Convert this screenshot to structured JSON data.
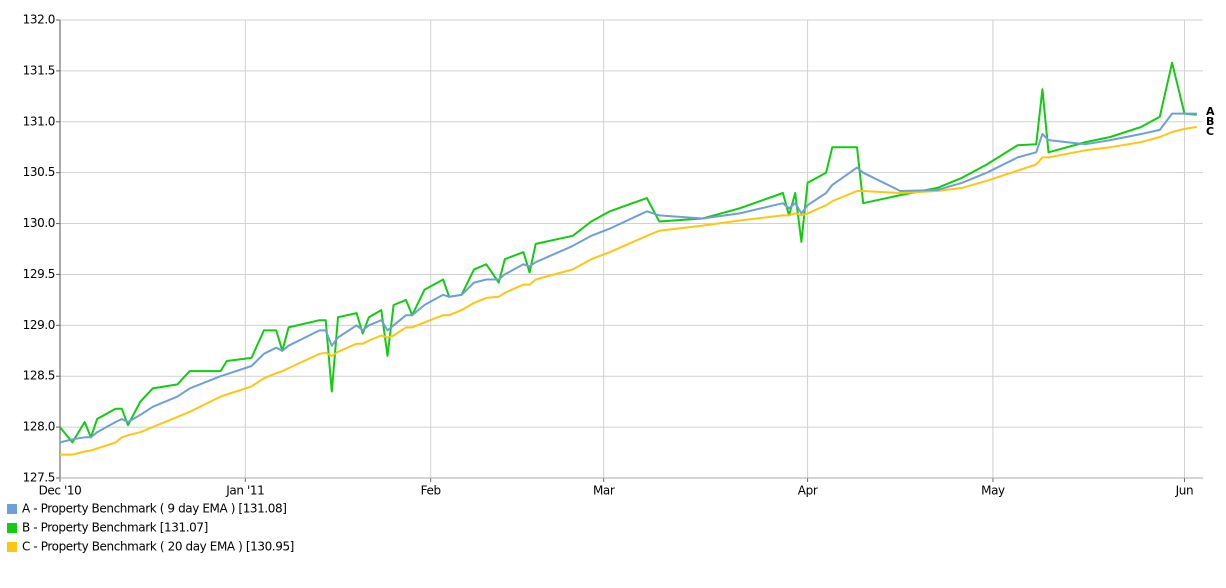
{
  "chart_data": {
    "type": "line",
    "x": [
      0,
      2,
      4,
      5,
      6,
      9,
      10,
      11,
      13,
      15,
      19,
      21,
      26,
      27,
      31,
      33,
      35,
      36,
      37,
      42,
      43,
      44,
      45,
      48,
      49,
      50,
      52,
      53,
      54,
      56,
      57,
      59,
      62,
      63,
      65,
      67,
      69,
      71,
      72,
      75,
      76,
      77,
      83,
      86,
      89,
      95,
      97,
      104,
      110,
      117,
      118,
      119,
      120,
      121,
      124,
      125,
      129,
      130,
      136,
      142,
      146,
      150,
      155,
      158,
      159,
      160,
      166,
      170,
      175,
      178,
      180,
      182,
      184
    ],
    "series": [
      {
        "name": "A - Property Benchmark ( 9 day EMA ) [131.08]",
        "tag": "A",
        "color": "#6f9fd8",
        "values": [
          127.85,
          127.88,
          127.9,
          127.9,
          127.95,
          128.05,
          128.08,
          128.05,
          128.12,
          128.2,
          128.3,
          128.38,
          128.5,
          128.52,
          128.6,
          128.72,
          128.78,
          128.75,
          128.8,
          128.95,
          128.95,
          128.8,
          128.88,
          129.0,
          128.95,
          129.0,
          129.05,
          128.95,
          129.0,
          129.1,
          129.1,
          129.2,
          129.3,
          129.28,
          129.3,
          129.42,
          129.45,
          129.45,
          129.5,
          129.6,
          129.58,
          129.62,
          129.78,
          129.88,
          129.95,
          130.12,
          130.08,
          130.05,
          130.1,
          130.2,
          130.15,
          130.2,
          130.1,
          130.18,
          130.3,
          130.38,
          130.55,
          130.5,
          130.32,
          130.33,
          130.4,
          130.5,
          130.65,
          130.7,
          130.88,
          130.82,
          130.78,
          130.82,
          130.88,
          130.92,
          131.08,
          131.08,
          131.08
        ]
      },
      {
        "name": "B - Property Benchmark [131.07]",
        "tag": "B",
        "color": "#11cc11",
        "values": [
          128.0,
          127.85,
          128.05,
          127.9,
          128.08,
          128.18,
          128.18,
          128.02,
          128.25,
          128.38,
          128.42,
          128.55,
          128.55,
          128.65,
          128.68,
          128.95,
          128.95,
          128.75,
          128.98,
          129.05,
          129.05,
          128.35,
          129.08,
          129.12,
          128.92,
          129.08,
          129.15,
          128.7,
          129.2,
          129.25,
          129.1,
          129.35,
          129.45,
          129.28,
          129.3,
          129.55,
          129.6,
          129.42,
          129.65,
          129.72,
          129.52,
          129.8,
          129.88,
          130.02,
          130.12,
          130.25,
          130.02,
          130.05,
          130.15,
          130.3,
          130.08,
          130.3,
          129.82,
          130.4,
          130.5,
          130.75,
          130.75,
          130.2,
          130.28,
          130.35,
          130.45,
          130.58,
          130.77,
          130.78,
          131.32,
          130.7,
          130.8,
          130.85,
          130.95,
          131.05,
          131.58,
          131.08,
          131.07
        ]
      },
      {
        "name": "C - Property Benchmark ( 20 day EMA ) [130.95]",
        "tag": "C",
        "color": "#ffc611",
        "values": [
          127.73,
          127.73,
          127.76,
          127.77,
          127.79,
          127.85,
          127.9,
          127.92,
          127.95,
          128.0,
          128.1,
          128.15,
          128.3,
          128.32,
          128.4,
          128.48,
          128.53,
          128.55,
          128.58,
          128.72,
          128.73,
          128.7,
          128.74,
          128.82,
          128.82,
          128.85,
          128.9,
          128.88,
          128.9,
          128.98,
          128.98,
          129.03,
          129.1,
          129.1,
          129.15,
          129.22,
          129.27,
          129.28,
          129.32,
          129.4,
          129.4,
          129.45,
          129.55,
          129.65,
          129.72,
          129.88,
          129.93,
          129.98,
          130.03,
          130.08,
          130.08,
          130.1,
          130.08,
          130.1,
          130.18,
          130.22,
          130.32,
          130.32,
          130.3,
          130.32,
          130.35,
          130.42,
          130.52,
          130.58,
          130.65,
          130.65,
          130.72,
          130.75,
          130.8,
          130.85,
          130.9,
          130.93,
          130.95
        ]
      }
    ],
    "xlim": [
      0,
      185
    ],
    "xticks": [
      {
        "value": 0,
        "label": "Dec '10"
      },
      {
        "value": 30,
        "label": "Jan '11"
      },
      {
        "value": 60,
        "label": "Feb"
      },
      {
        "value": 88,
        "label": "Mar"
      },
      {
        "value": 121,
        "label": "Apr"
      },
      {
        "value": 151,
        "label": "May"
      },
      {
        "value": 182,
        "label": "Jun"
      }
    ],
    "ylim": [
      127.5,
      132.0
    ],
    "yticks": [
      127.5,
      {
        "value": 128.0,
        "label": "128.0"
      },
      128.5,
      {
        "value": 129.0,
        "label": "129.0"
      },
      129.5,
      {
        "value": 130.0,
        "label": "130.0"
      },
      130.5,
      {
        "value": 131.0,
        "label": "131.0"
      },
      131.5,
      {
        "value": 132.0,
        "label": "132.0"
      }
    ],
    "grid": true
  }
}
